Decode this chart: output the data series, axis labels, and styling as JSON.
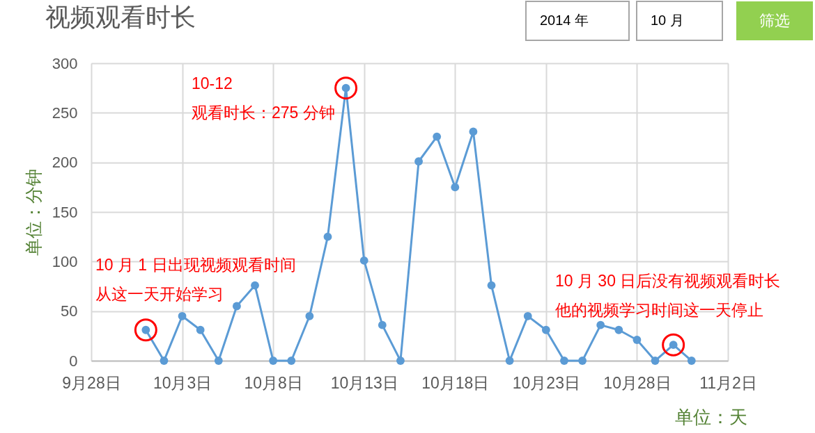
{
  "chart_data": {
    "type": "line",
    "title": "视频观看时长",
    "xlabel": "单位：天",
    "ylabel": "单位：分钟",
    "x": [
      "2014-10-01",
      "2014-10-02",
      "2014-10-03",
      "2014-10-04",
      "2014-10-05",
      "2014-10-06",
      "2014-10-07",
      "2014-10-08",
      "2014-10-09",
      "2014-10-10",
      "2014-10-11",
      "2014-10-12",
      "2014-10-13",
      "2014-10-14",
      "2014-10-15",
      "2014-10-16",
      "2014-10-17",
      "2014-10-18",
      "2014-10-19",
      "2014-10-20",
      "2014-10-21",
      "2014-10-22",
      "2014-10-23",
      "2014-10-24",
      "2014-10-25",
      "2014-10-26",
      "2014-10-27",
      "2014-10-28",
      "2014-10-29",
      "2014-10-30",
      "2014-10-31"
    ],
    "series": [
      {
        "color": "#5b9bd5",
        "values": [
          31,
          0,
          45,
          31,
          0,
          55,
          76,
          0,
          0,
          45,
          125,
          275,
          101,
          36,
          0,
          201,
          226,
          175,
          231,
          76,
          0,
          45,
          31,
          0,
          0,
          36,
          31,
          21,
          0,
          16,
          0
        ]
      },
      {
        "type": "scatter",
        "color": "#ff0000",
        "x": [
          "2014-10-01",
          "2014-10-12",
          "2014-10-30"
        ],
        "values": [
          31,
          275,
          16
        ]
      }
    ],
    "xlim": [
      "2014-09-28",
      "2014-11-02"
    ],
    "xticks": [
      {
        "value": "2014-09-28",
        "label": "9月28日"
      },
      {
        "value": "2014-10-03",
        "label": "10月3日"
      },
      {
        "value": "2014-10-08",
        "label": "10月8日"
      },
      {
        "value": "2014-10-13",
        "label": "10月13日"
      },
      {
        "value": "2014-10-18",
        "label": "10月18日"
      },
      {
        "value": "2014-10-23",
        "label": "10月23日"
      },
      {
        "value": "2014-10-28",
        "label": "10月28日"
      },
      {
        "value": "2014-11-02",
        "label": "11月2日"
      }
    ],
    "ylim": [
      0,
      300
    ],
    "yticks": [
      0,
      50,
      100,
      150,
      200,
      250,
      300
    ],
    "grid": true,
    "marker": "circle",
    "line_style": "solid",
    "annotations": [
      "10-12",
      "观看时长：275 分钟",
      "10 月 1 日出现视频观看时间",
      "从这一天开始学习",
      "10 月 30 日后没有视频观看时长",
      "他的视频学习时间这一天停止",
      "2014 年",
      "10 月",
      "筛选"
    ]
  }
}
